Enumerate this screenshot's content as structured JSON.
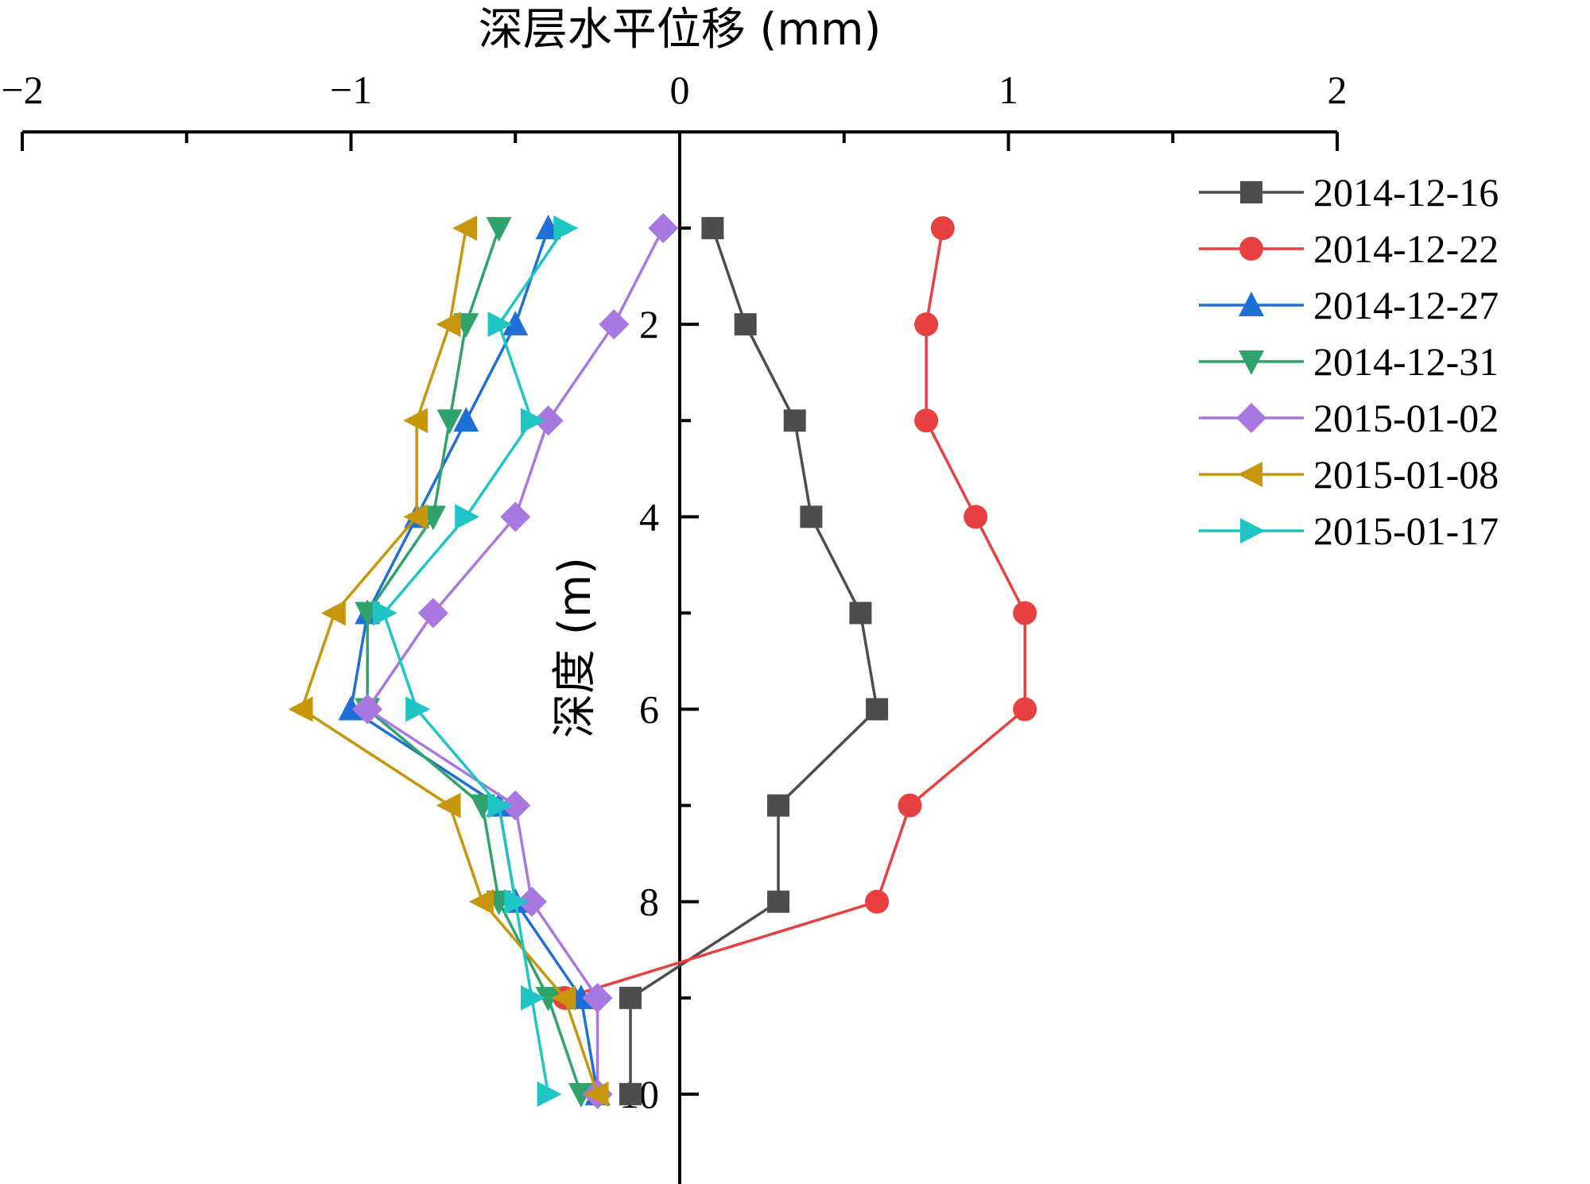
{
  "chart_data": {
    "type": "line",
    "xlabel": "深层水平位移 (mm)",
    "ylabel": "深度 (m)",
    "xlim": [
      -2,
      2
    ],
    "ylim": [
      0,
      11
    ],
    "y_inverted": true,
    "x_axis_position": "top",
    "x_ticks": [
      -2,
      -1,
      0,
      1,
      2
    ],
    "x_tick_labels": [
      "−2",
      "−1",
      "0",
      "1",
      "2"
    ],
    "y_ticks": [
      2,
      4,
      6,
      8,
      10
    ],
    "y_tick_labels": [
      "2",
      "4",
      "6",
      "8",
      "10"
    ],
    "legend_position": "top-right",
    "grid": false,
    "series": [
      {
        "name": "2014-12-16",
        "color": "#4d4d4d",
        "marker": "square",
        "points": [
          [
            0.1,
            1
          ],
          [
            0.2,
            2
          ],
          [
            0.35,
            3
          ],
          [
            0.4,
            4
          ],
          [
            0.55,
            5
          ],
          [
            0.6,
            6
          ],
          [
            0.3,
            7
          ],
          [
            0.3,
            8
          ],
          [
            -0.15,
            9
          ],
          [
            -0.15,
            10
          ]
        ]
      },
      {
        "name": "2014-12-22",
        "color": "#e84040",
        "marker": "circle",
        "points": [
          [
            0.8,
            1
          ],
          [
            0.75,
            2
          ],
          [
            0.75,
            3
          ],
          [
            0.9,
            4
          ],
          [
            1.05,
            5
          ],
          [
            1.05,
            6
          ],
          [
            0.7,
            7
          ],
          [
            0.6,
            8
          ],
          [
            -0.35,
            9
          ]
        ]
      },
      {
        "name": "2014-12-27",
        "color": "#1f6fd6",
        "marker": "triangle-up",
        "points": [
          [
            -0.4,
            1
          ],
          [
            -0.5,
            2
          ],
          [
            -0.65,
            3
          ],
          [
            -0.8,
            4
          ],
          [
            -0.95,
            5
          ],
          [
            -1.0,
            6
          ],
          [
            -0.55,
            7
          ],
          [
            -0.5,
            8
          ],
          [
            -0.3,
            9
          ],
          [
            -0.25,
            10
          ]
        ]
      },
      {
        "name": "2014-12-31",
        "color": "#2fa36b",
        "marker": "triangle-down",
        "points": [
          [
            -0.55,
            1
          ],
          [
            -0.65,
            2
          ],
          [
            -0.7,
            3
          ],
          [
            -0.75,
            4
          ],
          [
            -0.95,
            5
          ],
          [
            -0.95,
            6
          ],
          [
            -0.6,
            7
          ],
          [
            -0.55,
            8
          ],
          [
            -0.4,
            9
          ],
          [
            -0.3,
            10
          ]
        ]
      },
      {
        "name": "2015-01-02",
        "color": "#a878e0",
        "marker": "diamond",
        "points": [
          [
            -0.05,
            1
          ],
          [
            -0.2,
            2
          ],
          [
            -0.4,
            3
          ],
          [
            -0.5,
            4
          ],
          [
            -0.75,
            5
          ],
          [
            -0.95,
            6
          ],
          [
            -0.5,
            7
          ],
          [
            -0.45,
            8
          ],
          [
            -0.25,
            9
          ],
          [
            -0.25,
            10
          ]
        ]
      },
      {
        "name": "2015-01-08",
        "color": "#c8960a",
        "marker": "triangle-left",
        "points": [
          [
            -0.65,
            1
          ],
          [
            -0.7,
            2
          ],
          [
            -0.8,
            3
          ],
          [
            -0.8,
            4
          ],
          [
            -1.05,
            5
          ],
          [
            -1.15,
            6
          ],
          [
            -0.7,
            7
          ],
          [
            -0.6,
            8
          ],
          [
            -0.35,
            9
          ],
          [
            -0.25,
            10
          ]
        ]
      },
      {
        "name": "2015-01-17",
        "color": "#1fc4c4",
        "marker": "triangle-right",
        "points": [
          [
            -0.35,
            1
          ],
          [
            -0.55,
            2
          ],
          [
            -0.45,
            3
          ],
          [
            -0.65,
            4
          ],
          [
            -0.9,
            5
          ],
          [
            -0.8,
            6
          ],
          [
            -0.55,
            7
          ],
          [
            -0.5,
            8
          ],
          [
            -0.45,
            9
          ],
          [
            -0.4,
            10
          ]
        ]
      }
    ]
  }
}
